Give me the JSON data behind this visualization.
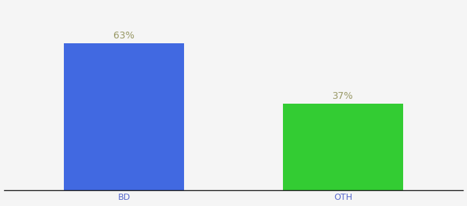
{
  "categories": [
    "BD",
    "OTH"
  ],
  "values": [
    63,
    37
  ],
  "bar_colors": [
    "#4169e1",
    "#33cc33"
  ],
  "label_color": "#999966",
  "value_labels": [
    "63%",
    "37%"
  ],
  "background_color": "#f5f5f5",
  "ylim": [
    0,
    80
  ],
  "bar_width": 0.55,
  "label_fontsize": 10,
  "tick_fontsize": 9,
  "tick_color": "#5566cc",
  "spine_color": "#111111"
}
